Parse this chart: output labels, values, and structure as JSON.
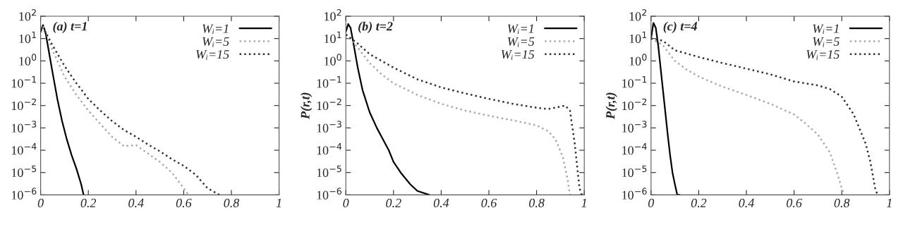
{
  "chart_data": [
    {
      "type": "line",
      "title": "(a) t=1",
      "xlim": [
        0,
        1
      ],
      "ylim": [
        1e-06,
        100
      ],
      "log": "y",
      "legend": "top right",
      "grid": false,
      "xticks": [
        0,
        0.2,
        0.4,
        0.6,
        0.8,
        1
      ],
      "yticks": [
        {
          "value": 1e-06,
          "label": "10$^{−6}$"
        },
        {
          "value": 1e-05,
          "label": "10$^{−5}$"
        },
        {
          "value": 0.0001,
          "label": "10$^{−4}$"
        },
        {
          "value": 0.001,
          "label": "10$^{−3}$"
        },
        {
          "value": 0.01,
          "label": "10$^{−2}$"
        },
        {
          "value": 0.1,
          "label": "10$^{−1}$"
        },
        {
          "value": 1,
          "label": "10$^{0}$"
        },
        {
          "value": 10,
          "label": "10$^{1}$"
        },
        {
          "value": 100,
          "label": "10$^{2}$"
        }
      ],
      "series": [
        {
          "name": "Wᵢ=1",
          "color": "#000000",
          "line_style": "solid",
          "x": [
            0,
            0.01,
            0.02,
            0.03,
            0.05,
            0.07,
            0.09,
            0.11,
            0.13,
            0.15,
            0.17,
            0.18
          ],
          "values": [
            20,
            40,
            20,
            5,
            0.3,
            0.02,
            0.002,
            0.0003,
            6e-05,
            1.5e-05,
            3e-06,
            1e-06
          ]
        },
        {
          "name": "Wᵢ=5",
          "color": "#aaaaaa",
          "line_style": "dotted",
          "x": [
            0,
            0.01,
            0.02,
            0.05,
            0.1,
            0.15,
            0.2,
            0.25,
            0.3,
            0.35,
            0.4,
            0.5,
            0.55,
            0.6,
            0.62
          ],
          "values": [
            30,
            40,
            20,
            3,
            0.2,
            0.03,
            0.006,
            0.0015,
            0.0004,
            0.00015,
            0.00017,
            3e-05,
            1e-05,
            2e-06,
            1e-06
          ]
        },
        {
          "name": "Wᵢ=15",
          "color": "#333333",
          "line_style": "dotted",
          "x": [
            0,
            0.02,
            0.05,
            0.1,
            0.15,
            0.2,
            0.25,
            0.3,
            0.35,
            0.4,
            0.45,
            0.5,
            0.55,
            0.6,
            0.65,
            0.7,
            0.75
          ],
          "values": [
            30,
            20,
            5,
            0.6,
            0.1,
            0.02,
            0.006,
            0.002,
            0.0008,
            0.0004,
            0.00018,
            9e-05,
            4e-05,
            2e-05,
            8e-06,
            2e-06,
            1e-06
          ]
        }
      ]
    },
    {
      "type": "line",
      "title": "(b) t=2",
      "ylabel": "P(r,t)",
      "xlim": [
        0,
        1
      ],
      "ylim": [
        1e-06,
        100
      ],
      "log": "y",
      "legend": "top right",
      "grid": false,
      "xticks": [
        0,
        0.2,
        0.4,
        0.6,
        0.8,
        1
      ],
      "yticks": [
        {
          "value": 1e-06,
          "label": "10$^{−6}$"
        },
        {
          "value": 1e-05,
          "label": "10$^{−5}$"
        },
        {
          "value": 0.0001,
          "label": "10$^{−4}$"
        },
        {
          "value": 0.001,
          "label": "10$^{−3}$"
        },
        {
          "value": 0.01,
          "label": "10$^{−2}$"
        },
        {
          "value": 0.1,
          "label": "10$^{−1}$"
        },
        {
          "value": 1,
          "label": "10$^{0}$"
        },
        {
          "value": 10,
          "label": "10$^{1}$"
        },
        {
          "value": 100,
          "label": "10$^{2}$"
        }
      ],
      "series": [
        {
          "name": "Wᵢ=1",
          "color": "#000000",
          "line_style": "solid",
          "x": [
            0,
            0.01,
            0.02,
            0.03,
            0.05,
            0.07,
            0.1,
            0.13,
            0.15,
            0.18,
            0.2,
            0.23,
            0.27,
            0.3,
            0.35
          ],
          "values": [
            20,
            45,
            30,
            8,
            0.5,
            0.05,
            0.005,
            0.001,
            0.0004,
            0.0001,
            3e-05,
            1e-05,
            3e-06,
            1.5e-06,
            1e-06
          ]
        },
        {
          "name": "Wᵢ=5",
          "color": "#aaaaaa",
          "line_style": "dotted",
          "x": [
            0,
            0.05,
            0.1,
            0.15,
            0.2,
            0.3,
            0.4,
            0.5,
            0.6,
            0.7,
            0.8,
            0.85,
            0.88,
            0.91,
            0.93,
            0.94
          ],
          "values": [
            15,
            4,
            0.8,
            0.25,
            0.1,
            0.03,
            0.012,
            0.006,
            0.0035,
            0.0022,
            0.0013,
            0.0007,
            0.0003,
            5e-05,
            5e-06,
            1e-06
          ]
        },
        {
          "name": "Wᵢ=15",
          "color": "#333333",
          "line_style": "dotted",
          "x": [
            0,
            0.05,
            0.1,
            0.2,
            0.3,
            0.4,
            0.5,
            0.6,
            0.7,
            0.8,
            0.85,
            0.9,
            0.92,
            0.94,
            0.96,
            0.97,
            0.98,
            0.99
          ],
          "values": [
            15,
            6,
            2,
            0.5,
            0.15,
            0.065,
            0.035,
            0.02,
            0.012,
            0.008,
            0.007,
            0.009,
            0.01,
            0.006,
            0.0002,
            2e-05,
            2e-06,
            1e-06
          ]
        }
      ]
    },
    {
      "type": "line",
      "title": "(c) t=4",
      "ylabel": "P(r,t)",
      "xlim": [
        0,
        1
      ],
      "ylim": [
        1e-06,
        100
      ],
      "log": "y",
      "legend": "top right",
      "grid": false,
      "xticks": [
        0,
        0.2,
        0.4,
        0.6,
        0.8,
        1
      ],
      "yticks": [
        {
          "value": 1e-06,
          "label": "10$^{−6}$"
        },
        {
          "value": 1e-05,
          "label": "10$^{−5}$"
        },
        {
          "value": 0.0001,
          "label": "10$^{−4}$"
        },
        {
          "value": 0.001,
          "label": "10$^{−3}$"
        },
        {
          "value": 0.01,
          "label": "10$^{−2}$"
        },
        {
          "value": 0.1,
          "label": "10$^{−1}$"
        },
        {
          "value": 1,
          "label": "10$^{0}$"
        },
        {
          "value": 10,
          "label": "10$^{1}$"
        },
        {
          "value": 100,
          "label": "10$^{2}$"
        }
      ],
      "series": [
        {
          "name": "Wᵢ=1",
          "color": "#000000",
          "line_style": "solid",
          "x": [
            0,
            0.01,
            0.02,
            0.03,
            0.04,
            0.05,
            0.06,
            0.07,
            0.08,
            0.09,
            0.1,
            0.11,
            0.12
          ],
          "values": [
            10,
            50,
            30,
            5,
            0.5,
            0.05,
            0.005,
            0.0005,
            6e-05,
            1e-05,
            3e-06,
            1e-06,
            1e-06
          ]
        },
        {
          "name": "Wᵢ=5",
          "color": "#aaaaaa",
          "line_style": "dotted",
          "x": [
            0,
            0.05,
            0.1,
            0.15,
            0.2,
            0.3,
            0.4,
            0.5,
            0.6,
            0.65,
            0.7,
            0.75,
            0.78,
            0.8,
            0.81
          ],
          "values": [
            10,
            5,
            1,
            0.4,
            0.2,
            0.07,
            0.03,
            0.012,
            0.004,
            0.0015,
            0.0005,
            8e-05,
            1e-05,
            2e-06,
            1e-06
          ]
        },
        {
          "name": "Wᵢ=15",
          "color": "#333333",
          "line_style": "dotted",
          "x": [
            0,
            0.05,
            0.1,
            0.2,
            0.3,
            0.4,
            0.5,
            0.6,
            0.7,
            0.75,
            0.8,
            0.85,
            0.9,
            0.92,
            0.94,
            0.95
          ],
          "values": [
            10,
            8,
            3,
            1.5,
            0.8,
            0.45,
            0.25,
            0.12,
            0.08,
            0.055,
            0.025,
            0.004,
            0.0002,
            3e-05,
            2e-06,
            1e-06
          ]
        }
      ]
    }
  ]
}
